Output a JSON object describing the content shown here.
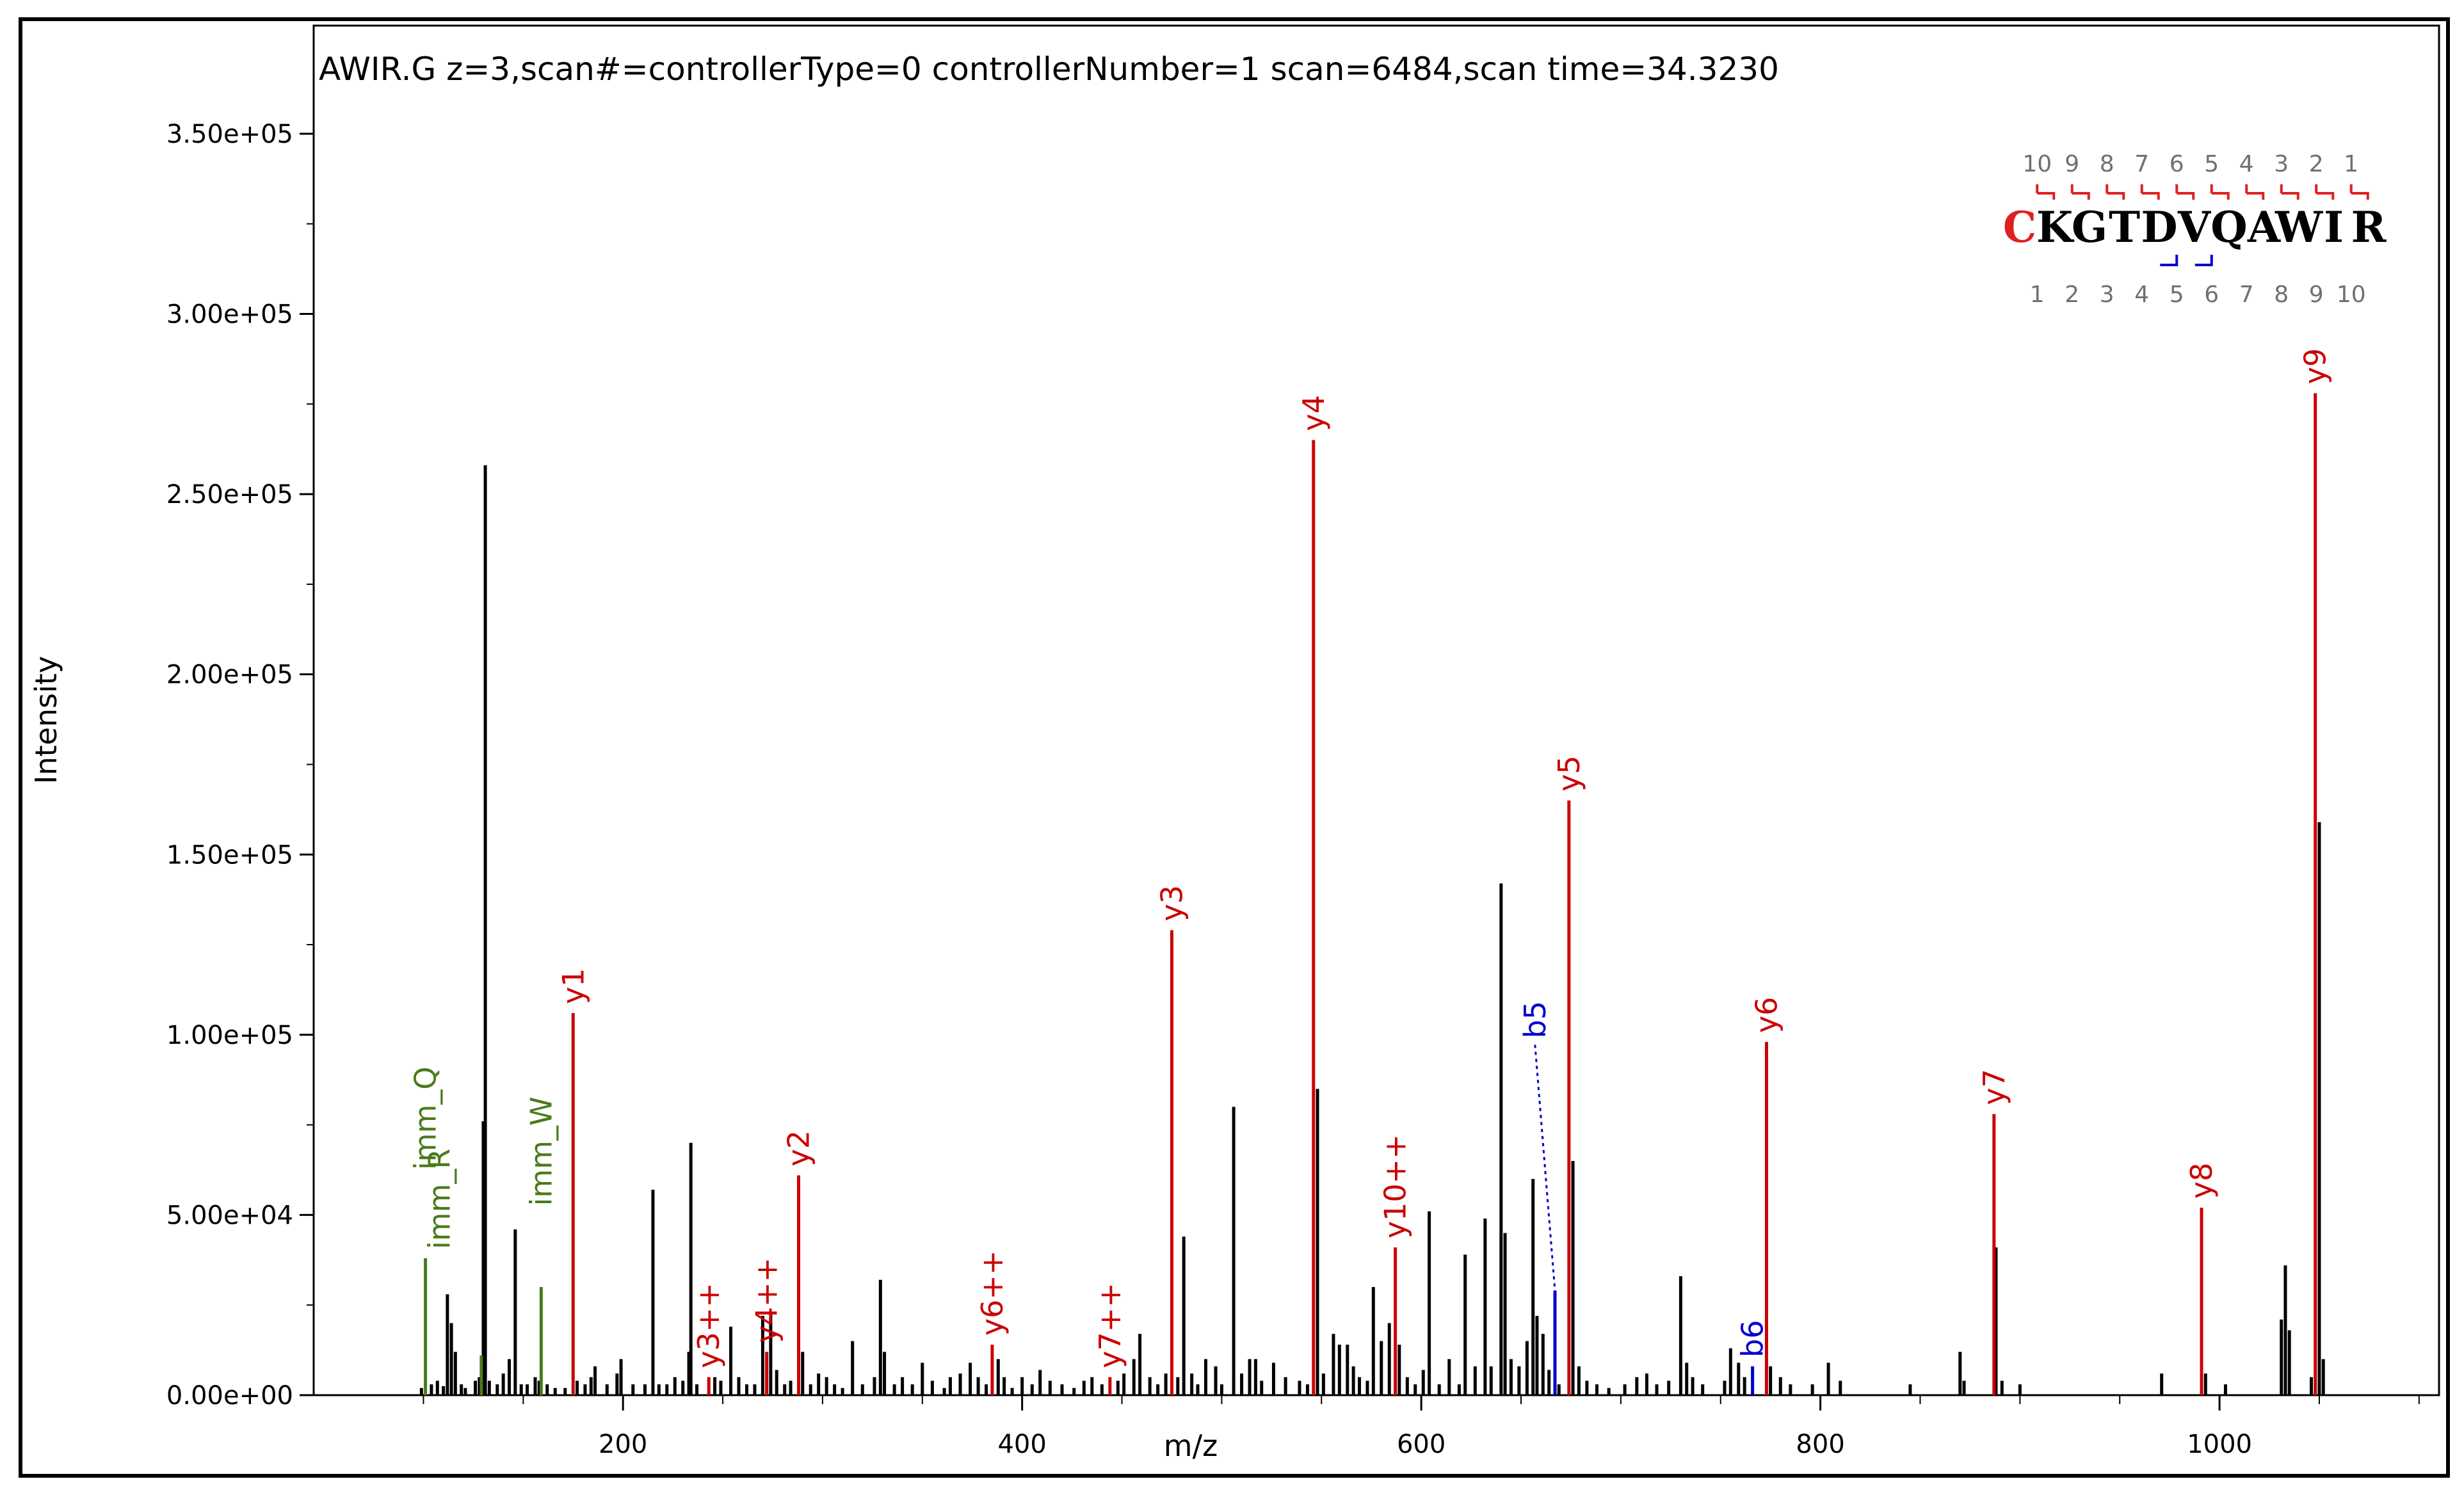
{
  "chart_data": {
    "type": "bar",
    "title": "AWIR.G z=3,scan#=controllerType=0 controllerNumber=1 scan=6484,scan time=34.3230",
    "xlabel": "m/z",
    "ylabel": "Intensity",
    "xlim": [
      45,
      1110
    ],
    "ylim": [
      0,
      380000
    ],
    "x_ticks": [
      200,
      400,
      600,
      800,
      1000
    ],
    "x_tick_labels": [
      "200",
      "400",
      "600",
      "800",
      "1000"
    ],
    "y_ticks": [
      0,
      50000,
      100000,
      150000,
      200000,
      250000,
      300000,
      350000
    ],
    "y_tick_labels": [
      "0.00e+00",
      "5.00e+04",
      "1.00e+05",
      "1.50e+05",
      "2.00e+05",
      "2.50e+05",
      "3.00e+05",
      "3.50e+05"
    ],
    "colors": {
      "unannotated": "#000000",
      "y_ion": "#cc0000",
      "b_ion": "#0000cc",
      "immonium": "#4a7a1a"
    },
    "annotated_peaks": [
      {
        "label": "imm_Q",
        "x": 101,
        "y": 38000,
        "type": "immonium"
      },
      {
        "label": "imm_R",
        "x": 129,
        "y": 11000,
        "type": "immonium"
      },
      {
        "label": "imm_W",
        "x": 159,
        "y": 30000,
        "type": "immonium"
      },
      {
        "label": "y1",
        "x": 175,
        "y": 106000,
        "type": "y_ion"
      },
      {
        "label": "y3++",
        "x": 243,
        "y": 5000,
        "type": "y_ion"
      },
      {
        "label": "y4++",
        "x": 272,
        "y": 12000,
        "type": "y_ion"
      },
      {
        "label": "y2",
        "x": 288,
        "y": 61000,
        "type": "y_ion"
      },
      {
        "label": "y6++",
        "x": 385,
        "y": 14000,
        "type": "y_ion"
      },
      {
        "label": "y7++",
        "x": 444,
        "y": 5000,
        "type": "y_ion"
      },
      {
        "label": "y3",
        "x": 475,
        "y": 129000,
        "type": "y_ion"
      },
      {
        "label": "y4",
        "x": 546,
        "y": 265000,
        "type": "y_ion"
      },
      {
        "label": "y10++",
        "x": 587,
        "y": 41000,
        "type": "y_ion"
      },
      {
        "label": "b5",
        "x": 667,
        "y": 29000,
        "type": "b_ion"
      },
      {
        "label": "y5",
        "x": 674,
        "y": 165000,
        "type": "y_ion"
      },
      {
        "label": "b6",
        "x": 766,
        "y": 8000,
        "type": "b_ion"
      },
      {
        "label": "y6",
        "x": 773,
        "y": 98000,
        "type": "y_ion"
      },
      {
        "label": "y7",
        "x": 887,
        "y": 78000,
        "type": "y_ion"
      },
      {
        "label": "y8",
        "x": 991,
        "y": 52000,
        "type": "y_ion"
      },
      {
        "label": "y9",
        "x": 1048,
        "y": 278000,
        "type": "y_ion"
      }
    ],
    "unannotated_peaks": [
      [
        99,
        2000
      ],
      [
        104,
        3000
      ],
      [
        107,
        4000
      ],
      [
        110,
        2500
      ],
      [
        112,
        28000
      ],
      [
        114,
        20000
      ],
      [
        116,
        12000
      ],
      [
        119,
        3000
      ],
      [
        121,
        2000
      ],
      [
        126,
        4000
      ],
      [
        128,
        5000
      ],
      [
        130,
        76000
      ],
      [
        131,
        258000
      ],
      [
        133,
        4000
      ],
      [
        137,
        3000
      ],
      [
        140,
        6000
      ],
      [
        143,
        10000
      ],
      [
        146,
        46000
      ],
      [
        149,
        3000
      ],
      [
        152,
        3000
      ],
      [
        156,
        5000
      ],
      [
        158,
        4000
      ],
      [
        162,
        3000
      ],
      [
        166,
        2000
      ],
      [
        171,
        2000
      ],
      [
        177,
        4000
      ],
      [
        181,
        3000
      ],
      [
        184,
        5000
      ],
      [
        186,
        8000
      ],
      [
        192,
        3000
      ],
      [
        197,
        6000
      ],
      [
        199,
        10000
      ],
      [
        205,
        3000
      ],
      [
        211,
        3000
      ],
      [
        215,
        57000
      ],
      [
        218,
        3000
      ],
      [
        222,
        3000
      ],
      [
        226,
        5000
      ],
      [
        230,
        4000
      ],
      [
        233,
        12000
      ],
      [
        234,
        70000
      ],
      [
        237,
        3000
      ],
      [
        246,
        5000
      ],
      [
        249,
        4000
      ],
      [
        254,
        19000
      ],
      [
        258,
        5000
      ],
      [
        262,
        3000
      ],
      [
        266,
        3000
      ],
      [
        270,
        22000
      ],
      [
        274,
        23000
      ],
      [
        277,
        7000
      ],
      [
        281,
        3000
      ],
      [
        284,
        4000
      ],
      [
        290,
        12000
      ],
      [
        294,
        3000
      ],
      [
        298,
        6000
      ],
      [
        302,
        5000
      ],
      [
        306,
        3000
      ],
      [
        310,
        2000
      ],
      [
        315,
        15000
      ],
      [
        320,
        3000
      ],
      [
        326,
        5000
      ],
      [
        329,
        32000
      ],
      [
        331,
        12000
      ],
      [
        336,
        3000
      ],
      [
        340,
        5000
      ],
      [
        345,
        3000
      ],
      [
        350,
        9000
      ],
      [
        355,
        4000
      ],
      [
        361,
        2000
      ],
      [
        364,
        5000
      ],
      [
        369,
        6000
      ],
      [
        374,
        9000
      ],
      [
        378,
        5000
      ],
      [
        382,
        3000
      ],
      [
        388,
        10000
      ],
      [
        391,
        5000
      ],
      [
        395,
        2000
      ],
      [
        400,
        5000
      ],
      [
        405,
        3000
      ],
      [
        409,
        7000
      ],
      [
        414,
        4000
      ],
      [
        420,
        3000
      ],
      [
        426,
        2000
      ],
      [
        431,
        4000
      ],
      [
        435,
        5000
      ],
      [
        440,
        3000
      ],
      [
        448,
        4000
      ],
      [
        451,
        6000
      ],
      [
        456,
        10000
      ],
      [
        459,
        17000
      ],
      [
        464,
        5000
      ],
      [
        468,
        3000
      ],
      [
        472,
        6000
      ],
      [
        478,
        5000
      ],
      [
        481,
        44000
      ],
      [
        485,
        6000
      ],
      [
        488,
        3000
      ],
      [
        492,
        10000
      ],
      [
        497,
        8000
      ],
      [
        500,
        3000
      ],
      [
        506,
        80000
      ],
      [
        510,
        6000
      ],
      [
        514,
        10000
      ],
      [
        517,
        10000
      ],
      [
        520,
        4000
      ],
      [
        526,
        9000
      ],
      [
        532,
        5000
      ],
      [
        539,
        4000
      ],
      [
        543,
        3000
      ],
      [
        548,
        85000
      ],
      [
        551,
        6000
      ],
      [
        556,
        17000
      ],
      [
        559,
        14000
      ],
      [
        563,
        14000
      ],
      [
        566,
        8000
      ],
      [
        569,
        5000
      ],
      [
        573,
        4000
      ],
      [
        576,
        30000
      ],
      [
        580,
        15000
      ],
      [
        584,
        20000
      ],
      [
        589,
        14000
      ],
      [
        593,
        5000
      ],
      [
        597,
        3000
      ],
      [
        601,
        7000
      ],
      [
        604,
        51000
      ],
      [
        609,
        3000
      ],
      [
        614,
        10000
      ],
      [
        619,
        3000
      ],
      [
        622,
        39000
      ],
      [
        627,
        8000
      ],
      [
        632,
        49000
      ],
      [
        635,
        8000
      ],
      [
        640,
        142000
      ],
      [
        642,
        45000
      ],
      [
        645,
        10000
      ],
      [
        649,
        8000
      ],
      [
        653,
        15000
      ],
      [
        656,
        60000
      ],
      [
        658,
        22000
      ],
      [
        661,
        17000
      ],
      [
        664,
        7000
      ],
      [
        669,
        3000
      ],
      [
        676,
        65000
      ],
      [
        679,
        8000
      ],
      [
        683,
        4000
      ],
      [
        688,
        3000
      ],
      [
        694,
        2000
      ],
      [
        702,
        3000
      ],
      [
        708,
        5000
      ],
      [
        713,
        6000
      ],
      [
        718,
        3000
      ],
      [
        724,
        4000
      ],
      [
        730,
        33000
      ],
      [
        733,
        9000
      ],
      [
        736,
        5000
      ],
      [
        741,
        3000
      ],
      [
        752,
        4000
      ],
      [
        755,
        13000
      ],
      [
        759,
        9000
      ],
      [
        762,
        5000
      ],
      [
        775,
        8000
      ],
      [
        780,
        5000
      ],
      [
        785,
        3000
      ],
      [
        796,
        3000
      ],
      [
        804,
        9000
      ],
      [
        810,
        4000
      ],
      [
        845,
        3000
      ],
      [
        870,
        12000
      ],
      [
        872,
        4000
      ],
      [
        888,
        41000
      ],
      [
        891,
        4000
      ],
      [
        900,
        3000
      ],
      [
        971,
        6000
      ],
      [
        993,
        6000
      ],
      [
        1003,
        3000
      ],
      [
        1031,
        21000
      ],
      [
        1033,
        36000
      ],
      [
        1035,
        18000
      ],
      [
        1046,
        5000
      ],
      [
        1050,
        159000
      ],
      [
        1052,
        10000
      ]
    ],
    "sequence": {
      "residues": [
        "C",
        "K",
        "G",
        "T",
        "D",
        "V",
        "Q",
        "A",
        "W",
        "I",
        "R"
      ],
      "modified_residue_index": 0,
      "y_numbers": [
        "10",
        "9",
        "8",
        "7",
        "6",
        "5",
        "4",
        "3",
        "2",
        "1"
      ],
      "b_numbers": [
        "1",
        "2",
        "3",
        "4",
        "5",
        "6",
        "7",
        "8",
        "9",
        "10"
      ],
      "y_observed": [
        10,
        9,
        8,
        7,
        6,
        5,
        4,
        3,
        2,
        1
      ],
      "b_observed": [
        5,
        6
      ]
    }
  }
}
